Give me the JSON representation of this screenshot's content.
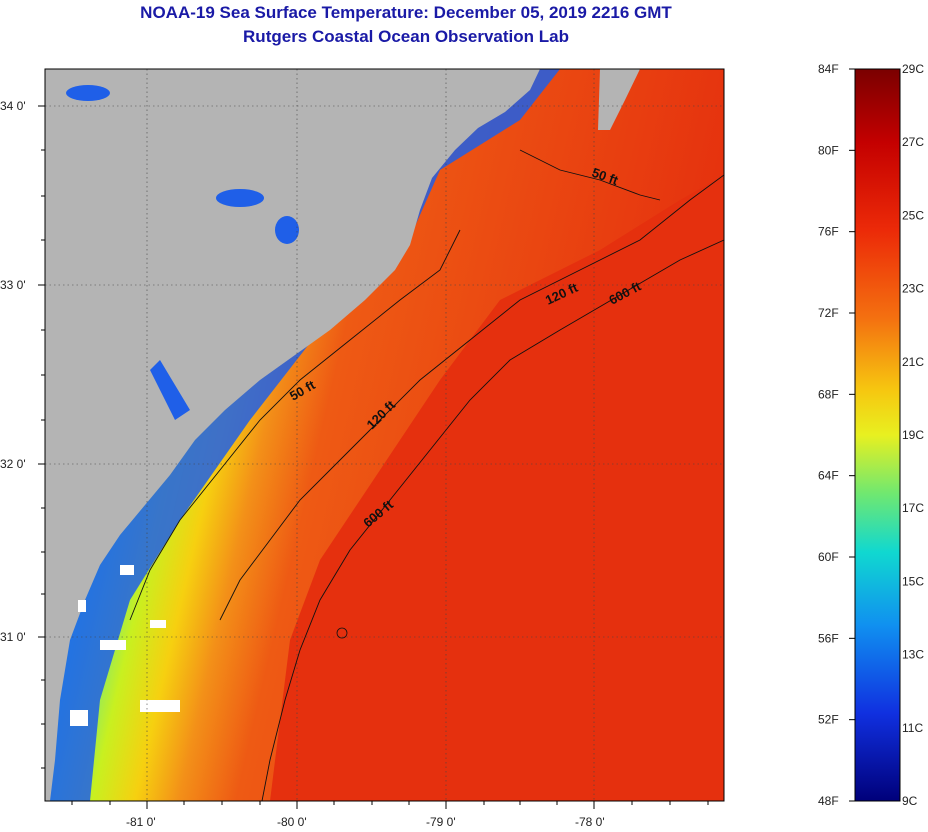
{
  "header": {
    "title": "NOAA-19 Sea Surface Temperature:  December 05, 2019 2216 GMT",
    "subtitle": "Rutgers Coastal Ocean Observation Lab"
  },
  "map": {
    "lat_labels": [
      "34 0'",
      "33 0'",
      "32 0'",
      "31 0'"
    ],
    "lon_labels": [
      "-81 0'",
      "-80 0'",
      "-79 0'",
      "-78 0'"
    ],
    "contours": {
      "c50a": "50 ft",
      "c50b": "50 ft",
      "c120a": "120 ft",
      "c120b": "120 ft",
      "c600a": "600 ft",
      "c600b": "600 ft"
    }
  },
  "legend": {
    "fahrenheit": [
      "84F",
      "80F",
      "76F",
      "72F",
      "68F",
      "64F",
      "60F",
      "56F",
      "52F",
      "48F"
    ],
    "celsius": [
      "29C",
      "27C",
      "25C",
      "23C",
      "21C",
      "19C",
      "17C",
      "15C",
      "13C",
      "11C",
      "9C"
    ]
  },
  "colors": {
    "land": "#b4b4b4",
    "ocean_warm": "#e8300e",
    "title": "#1a1aa6"
  }
}
